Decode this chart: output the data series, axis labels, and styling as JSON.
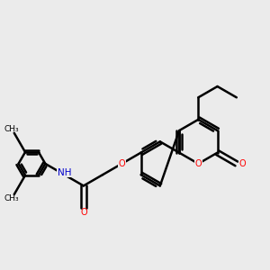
{
  "background_color": "#ebebeb",
  "bond_color": "#000000",
  "bond_width": 1.8,
  "o_color": "#ff0000",
  "n_color": "#0000cd",
  "figsize": [
    3.0,
    3.0
  ],
  "dpi": 100,
  "xlim": [
    0,
    12
  ],
  "ylim": [
    0,
    12
  ]
}
